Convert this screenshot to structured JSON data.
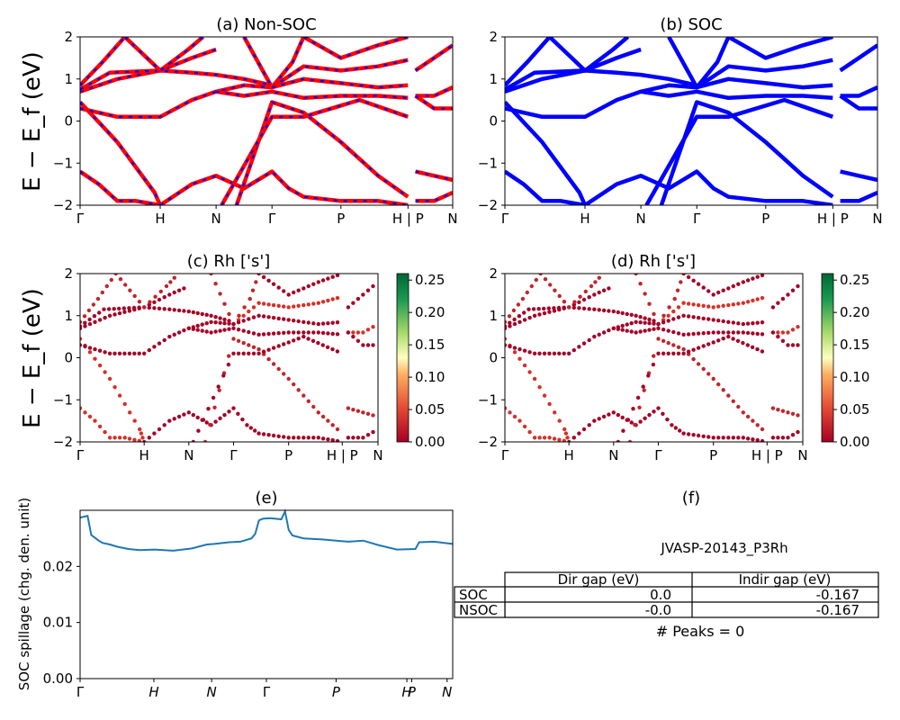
{
  "figure": {
    "ylabel_band": "E − E_f (eV)",
    "kpath": [
      "Γ",
      "H",
      "N",
      "Γ",
      "P",
      "H | P",
      "N"
    ],
    "kpath_italic": [
      "Γ",
      "H",
      "N",
      "Γ",
      "P",
      "H",
      "P",
      "N"
    ]
  },
  "chart_data": [
    {
      "id": "a",
      "type": "line",
      "title": "(a) Non-SOC",
      "ylabel": "E − E_f (eV)",
      "ylim": [
        -2,
        2
      ],
      "yticks": [
        -2,
        -1,
        0,
        1,
        2
      ],
      "xticks": [
        "Γ",
        "H",
        "N",
        "Γ",
        "P",
        "H | P",
        "N"
      ],
      "tick_pos": [
        0,
        0.215,
        0.365,
        0.515,
        0.7,
        0.88,
        1.0
      ],
      "series": [
        {
          "color": "#ff0000",
          "dash_overlay": "#0000ff",
          "bands": [
            [
              [
                0,
                0.45
              ],
              [
                0.1,
                -0.5
              ],
              [
                0.2,
                -1.7
              ],
              [
                0.215,
                -2
              ]
            ],
            [
              [
                0,
                0.3
              ],
              [
                0.1,
                0.1
              ],
              [
                0.215,
                0.1
              ],
              [
                0.3,
                0.5
              ],
              [
                0.365,
                0.7
              ],
              [
                0.44,
                0.85
              ],
              [
                0.515,
                0.8
              ]
            ],
            [
              [
                0,
                0.7
              ],
              [
                0.1,
                1.0
              ],
              [
                0.215,
                1.2
              ],
              [
                0.3,
                1.5
              ],
              [
                0.365,
                1.7
              ]
            ],
            [
              [
                0,
                0.85
              ],
              [
                0.06,
                1.4
              ],
              [
                0.12,
                2
              ]
            ],
            [
              [
                0,
                0.75
              ],
              [
                0.08,
                1.15
              ],
              [
                0.215,
                1.2
              ],
              [
                0.3,
                1.15
              ],
              [
                0.365,
                1.1
              ],
              [
                0.44,
                1.0
              ],
              [
                0.515,
                0.85
              ]
            ],
            [
              [
                0,
                -1.2
              ],
              [
                0.05,
                -1.5
              ],
              [
                0.1,
                -1.9
              ],
              [
                0.15,
                -1.9
              ],
              [
                0.215,
                -2
              ]
            ],
            [
              [
                0.12,
                2
              ],
              [
                0.215,
                1.2
              ],
              [
                0.29,
                1.7
              ],
              [
                0.33,
                2
              ]
            ],
            [
              [
                0.215,
                -2
              ],
              [
                0.3,
                -1.5
              ],
              [
                0.365,
                -1.3
              ],
              [
                0.44,
                -1.6
              ],
              [
                0.515,
                -1.2
              ],
              [
                0.56,
                -1.6
              ],
              [
                0.6,
                -1.8
              ],
              [
                0.7,
                -1.9
              ],
              [
                0.8,
                -1.9
              ],
              [
                0.88,
                -2
              ]
            ],
            [
              [
                0.365,
                0.7
              ],
              [
                0.44,
                0.6
              ],
              [
                0.515,
                0.7
              ],
              [
                0.6,
                0.55
              ],
              [
                0.7,
                0.6
              ],
              [
                0.8,
                0.6
              ],
              [
                0.88,
                0.55
              ]
            ],
            [
              [
                0.44,
                2
              ],
              [
                0.515,
                0.8
              ],
              [
                0.57,
                1.4
              ],
              [
                0.6,
                2
              ]
            ],
            [
              [
                0.515,
                0.8
              ],
              [
                0.6,
                1.3
              ],
              [
                0.7,
                1.2
              ],
              [
                0.8,
                1.3
              ],
              [
                0.88,
                1.45
              ]
            ],
            [
              [
                0.515,
                0.8
              ],
              [
                0.6,
                1.0
              ],
              [
                0.7,
                0.9
              ],
              [
                0.8,
                0.8
              ],
              [
                0.88,
                0.85
              ]
            ],
            [
              [
                0.42,
                -2
              ],
              [
                0.515,
                0.45
              ],
              [
                0.6,
                0.2
              ],
              [
                0.7,
                -0.5
              ],
              [
                0.8,
                -1.3
              ],
              [
                0.88,
                -1.8
              ]
            ],
            [
              [
                0.38,
                -2
              ],
              [
                0.515,
                0.1
              ],
              [
                0.6,
                0.1
              ],
              [
                0.75,
                0.5
              ],
              [
                0.88,
                0.1
              ]
            ],
            [
              [
                0.6,
                2
              ],
              [
                0.7,
                1.5
              ],
              [
                0.8,
                1.8
              ],
              [
                0.88,
                2
              ]
            ],
            [
              [
                0.9,
                0.6
              ],
              [
                0.95,
                0.6
              ],
              [
                1.0,
                0.8
              ]
            ],
            [
              [
                0.9,
                0.6
              ],
              [
                0.95,
                0.3
              ],
              [
                1.0,
                0.3
              ]
            ],
            [
              [
                0.9,
                1.2
              ],
              [
                0.95,
                1.5
              ],
              [
                1.0,
                1.8
              ]
            ],
            [
              [
                0.9,
                -1.2
              ],
              [
                0.95,
                -1.3
              ],
              [
                1.0,
                -1.4
              ]
            ],
            [
              [
                0.9,
                -1.9
              ],
              [
                0.95,
                -1.9
              ],
              [
                1.0,
                -1.7
              ]
            ]
          ]
        }
      ]
    },
    {
      "id": "b",
      "type": "line",
      "title": "(b) SOC",
      "ylim": [
        -2,
        2
      ],
      "yticks": [
        -2,
        -1,
        0,
        1,
        2
      ],
      "xticks": [
        "Γ",
        "H",
        "N",
        "Γ",
        "P",
        "H | P",
        "N"
      ],
      "series": [
        {
          "color": "#0000ff",
          "bands": "same-as-a"
        }
      ]
    },
    {
      "id": "c",
      "type": "scatter",
      "title": "(c)  Rh ['s']",
      "ylabel": "E − E_f (eV)",
      "ylim": [
        -2,
        2
      ],
      "yticks": [
        -2,
        -1,
        0,
        1,
        2
      ],
      "xticks": [
        "Γ",
        "H",
        "N",
        "Γ",
        "P",
        "H | P",
        "N"
      ],
      "colorbar": {
        "cmap": "RdYlGn",
        "range": [
          0.0,
          0.26
        ],
        "ticks": [
          "0.00",
          "0.05",
          "0.10",
          "0.15",
          "0.20",
          "0.25"
        ]
      }
    },
    {
      "id": "d",
      "type": "scatter",
      "title": "(d) Rh ['s']",
      "ylim": [
        -2,
        2
      ],
      "yticks": [
        -2,
        -1,
        0,
        1,
        2
      ],
      "xticks": [
        "Γ",
        "H",
        "N",
        "Γ",
        "P",
        "H | P",
        "N"
      ],
      "colorbar": {
        "cmap": "RdYlGn",
        "range": [
          0.0,
          0.26
        ],
        "ticks": [
          "0.00",
          "0.05",
          "0.10",
          "0.15",
          "0.20",
          "0.25"
        ]
      }
    },
    {
      "id": "e",
      "type": "line",
      "title": "(e)",
      "ylabel": "SOC spillage (chg. den. unit)",
      "ylim": [
        0,
        0.03
      ],
      "yticks": [
        "0.00",
        "0.01",
        "0.02"
      ],
      "xticks": [
        "Γ",
        "H",
        "N",
        "Γ",
        "P",
        "H",
        "P",
        "N"
      ],
      "x": [
        0,
        0.02,
        0.03,
        0.05,
        0.06,
        0.08,
        0.1,
        0.13,
        0.16,
        0.2,
        0.25,
        0.3,
        0.34,
        0.36,
        0.4,
        0.43,
        0.46,
        0.47,
        0.48,
        0.49,
        0.51,
        0.54,
        0.55,
        0.56,
        0.57,
        0.6,
        0.65,
        0.72,
        0.76,
        0.8,
        0.85,
        0.9,
        0.91,
        0.95,
        1.0
      ],
      "y": [
        0.0287,
        0.029,
        0.0256,
        0.0246,
        0.0242,
        0.0239,
        0.0235,
        0.0231,
        0.0229,
        0.023,
        0.0228,
        0.0232,
        0.0239,
        0.024,
        0.0243,
        0.0244,
        0.025,
        0.0258,
        0.0282,
        0.0285,
        0.0286,
        0.0284,
        0.0298,
        0.0265,
        0.0255,
        0.025,
        0.0248,
        0.0244,
        0.0246,
        0.0238,
        0.023,
        0.0231,
        0.0243,
        0.0244,
        0.024
      ],
      "color": "#1f77b4"
    },
    {
      "id": "f",
      "type": "table",
      "title": "(f)",
      "subtitle": "JVASP-20143_P3Rh",
      "columns": [
        "Dir gap (eV)",
        "Indir gap (eV)"
      ],
      "rows": [
        {
          "label": "SOC",
          "values": [
            "0.0",
            "-0.167"
          ]
        },
        {
          "label": "NSOC",
          "values": [
            "-0.0",
            "-0.167"
          ]
        }
      ],
      "footer": "# Peaks = 0"
    }
  ]
}
